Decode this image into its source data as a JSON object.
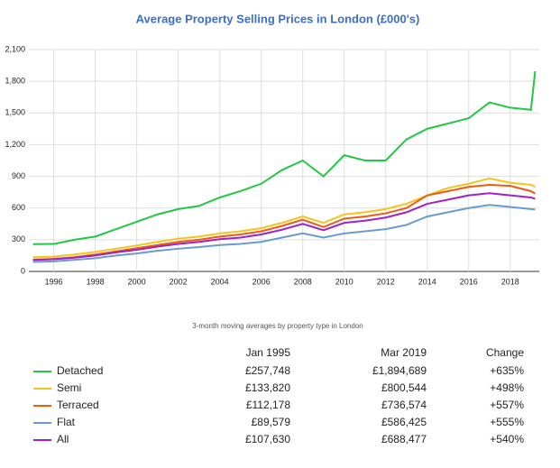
{
  "chart_data": {
    "type": "line",
    "title": "Average Property Selling Prices in London (£000's)",
    "subtitle": "3-month moving averages by property type in London",
    "x": [
      1995,
      1996,
      1997,
      1998,
      1999,
      2000,
      2001,
      2002,
      2003,
      2004,
      2005,
      2006,
      2007,
      2008,
      2009,
      2010,
      2011,
      2012,
      2013,
      2014,
      2015,
      2016,
      2017,
      2018,
      2019,
      2019.2
    ],
    "xlim": [
      1994.8,
      2019.4
    ],
    "xticks": [
      1996,
      1998,
      2000,
      2002,
      2004,
      2006,
      2008,
      2010,
      2012,
      2014,
      2016,
      2018
    ],
    "ylim": [
      0,
      2100
    ],
    "yticks": [
      0,
      300,
      600,
      900,
      {
        "value": 1200,
        "label": "1,200"
      },
      {
        "value": 1500,
        "label": "1,500"
      },
      {
        "value": 1800,
        "label": "1,800"
      },
      {
        "value": 2100,
        "label": "2,100"
      }
    ],
    "grid": true,
    "series": [
      {
        "name": "Detached",
        "color": "#22c745",
        "values": [
          258,
          260,
          300,
          330,
          400,
          470,
          540,
          590,
          620,
          700,
          760,
          830,
          960,
          1050,
          900,
          1100,
          1050,
          1050,
          1250,
          1350,
          1400,
          1450,
          1600,
          1550,
          1530,
          1895
        ]
      },
      {
        "name": "Semi",
        "color": "#f4c41c",
        "values": [
          134,
          140,
          160,
          185,
          215,
          245,
          280,
          310,
          330,
          360,
          380,
          410,
          460,
          520,
          460,
          540,
          560,
          590,
          640,
          720,
          790,
          830,
          880,
          840,
          820,
          800
        ]
      },
      {
        "name": "Terraced",
        "color": "#ee5a12",
        "values": [
          112,
          118,
          135,
          160,
          190,
          220,
          250,
          280,
          300,
          330,
          350,
          380,
          430,
          490,
          420,
          500,
          520,
          550,
          600,
          720,
          760,
          800,
          820,
          810,
          760,
          737
        ]
      },
      {
        "name": "Flat",
        "color": "#6a9bcc",
        "values": [
          90,
          95,
          110,
          125,
          150,
          170,
          195,
          215,
          230,
          250,
          260,
          280,
          320,
          360,
          320,
          360,
          380,
          400,
          440,
          520,
          560,
          600,
          630,
          610,
          590,
          586
        ]
      },
      {
        "name": "All",
        "color": "#9b22cc",
        "values": [
          108,
          115,
          130,
          150,
          180,
          205,
          235,
          260,
          280,
          305,
          320,
          350,
          395,
          450,
          390,
          460,
          480,
          510,
          560,
          640,
          680,
          720,
          740,
          720,
          700,
          688
        ]
      }
    ]
  },
  "table": {
    "columns": [
      "Jan 1995",
      "Mar 2019",
      "Change"
    ],
    "rows": [
      [
        "£257,748",
        "£1,894,689",
        "+635%"
      ],
      [
        "£133,820",
        "£800,544",
        "+498%"
      ],
      [
        "£112,178",
        "£736,574",
        "+557%"
      ],
      [
        "£89,579",
        "£586,425",
        "+555%"
      ],
      [
        "£107,630",
        "£688,477",
        "+540%"
      ]
    ]
  }
}
